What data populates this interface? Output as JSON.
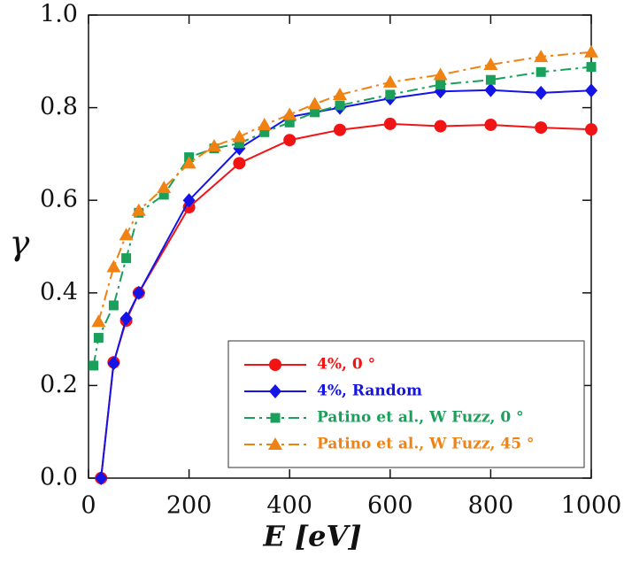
{
  "chart_data": {
    "type": "line",
    "xlabel": "E [eV]",
    "ylabel": "γ",
    "xlim": [
      0,
      1000
    ],
    "ylim": [
      0,
      1
    ],
    "xticks": [
      0,
      200,
      400,
      600,
      800,
      1000
    ],
    "yticks": [
      {
        "value": 0,
        "label": "0.0"
      },
      0.2,
      0.4,
      0.6,
      0.8,
      {
        "value": 1,
        "label": "1.0"
      }
    ],
    "legend": "lower right",
    "series": [
      {
        "name": "4%, 0 °",
        "color": "#f01414",
        "marker": "circle",
        "linestyle": "solid",
        "x": [
          25,
          50,
          75,
          100,
          200,
          300,
          400,
          500,
          600,
          700,
          800,
          900,
          1000
        ],
        "values": [
          0.0,
          0.25,
          0.34,
          0.4,
          0.585,
          0.68,
          0.73,
          0.752,
          0.765,
          0.76,
          0.763,
          0.757,
          0.753
        ]
      },
      {
        "name": "4%, Random",
        "color": "#1414e6",
        "marker": "diamond",
        "linestyle": "solid",
        "x": [
          25,
          50,
          75,
          100,
          200,
          300,
          400,
          500,
          600,
          700,
          800,
          900,
          1000
        ],
        "values": [
          0.0,
          0.248,
          0.345,
          0.4,
          0.6,
          0.712,
          0.78,
          0.8,
          0.82,
          0.835,
          0.838,
          0.832,
          0.837
        ]
      },
      {
        "name": "Patino et al., W Fuzz, 0 °",
        "color": "#1aa05a",
        "marker": "square",
        "linestyle": "dashdot",
        "x": [
          10,
          20,
          50,
          75,
          100,
          150,
          200,
          250,
          300,
          350,
          400,
          450,
          500,
          600,
          700,
          800,
          900,
          1000
        ],
        "values": [
          0.243,
          0.303,
          0.373,
          0.475,
          0.573,
          0.612,
          0.693,
          0.712,
          0.723,
          0.747,
          0.768,
          0.79,
          0.805,
          0.828,
          0.85,
          0.86,
          0.877,
          0.888
        ]
      },
      {
        "name": "Patino et al., W Fuzz, 45 °",
        "color": "#f08214",
        "marker": "triangle",
        "linestyle": "dashdot",
        "x": [
          20,
          50,
          75,
          100,
          150,
          200,
          250,
          300,
          350,
          400,
          450,
          500,
          600,
          700,
          800,
          900,
          1000
        ],
        "values": [
          0.338,
          0.456,
          0.525,
          0.578,
          0.627,
          0.68,
          0.717,
          0.737,
          0.763,
          0.785,
          0.808,
          0.828,
          0.855,
          0.871,
          0.893,
          0.91,
          0.92
        ]
      }
    ]
  }
}
